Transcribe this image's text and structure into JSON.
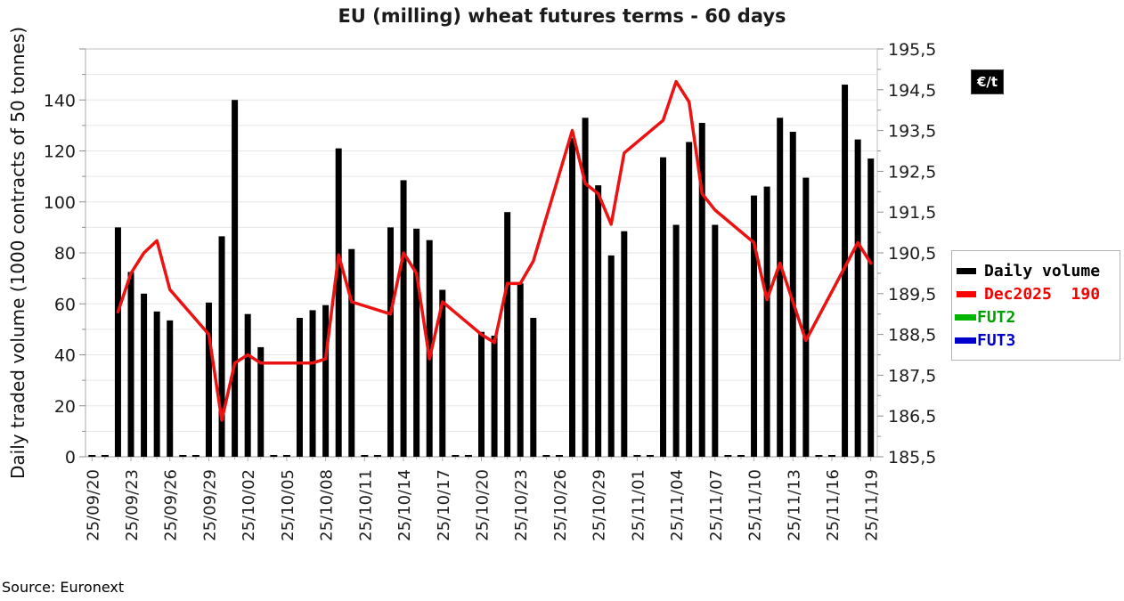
{
  "title": "EU (milling) wheat futures terms - 60 days",
  "source": "Source: Euronext",
  "unit_badge": "€/t",
  "y_axis_label": "Daily traded volume (1000 contracts of 50 tonnes)",
  "legend": {
    "items": [
      {
        "label": "Daily volume",
        "color": "#000000",
        "text_color": "#000000"
      },
      {
        "label": "Dec2025  190",
        "color": "#ff0000",
        "text_color": "#f50000"
      },
      {
        "label": "FUT2",
        "color": "#00b400",
        "text_color": "#00a000"
      },
      {
        "label": "FUT3",
        "color": "#0000cc",
        "text_color": "#0000cc"
      }
    ]
  },
  "chart_data": {
    "type": "bar+line",
    "title": "EU (milling) wheat futures terms - 60 days",
    "xlabel": "",
    "ylabel_left": "Daily traded volume (1000 contracts of 50 tonnes)",
    "ylabel_right": "€/t",
    "grid": true,
    "tick_label_every": 3,
    "dates": [
      "25/09/20",
      "25/09/21",
      "25/09/22",
      "25/09/23",
      "25/09/24",
      "25/09/25",
      "25/09/26",
      "25/09/27",
      "25/09/28",
      "25/09/29",
      "25/09/30",
      "25/10/01",
      "25/10/02",
      "25/10/03",
      "25/10/04",
      "25/10/05",
      "25/10/06",
      "25/10/07",
      "25/10/08",
      "25/10/09",
      "25/10/10",
      "25/10/11",
      "25/10/12",
      "25/10/13",
      "25/10/14",
      "25/10/15",
      "25/10/16",
      "25/10/17",
      "25/10/18",
      "25/10/19",
      "25/10/20",
      "25/10/21",
      "25/10/22",
      "25/10/23",
      "25/10/24",
      "25/10/25",
      "25/10/26",
      "25/10/27",
      "25/10/28",
      "25/10/29",
      "25/10/30",
      "25/10/31",
      "25/11/01",
      "25/11/02",
      "25/11/03",
      "25/11/04",
      "25/11/05",
      "25/11/06",
      "25/11/07",
      "25/11/08",
      "25/11/09",
      "25/11/10",
      "25/11/11",
      "25/11/12",
      "25/11/13",
      "25/11/14",
      "25/11/15",
      "25/11/16",
      "25/11/17",
      "25/11/18",
      "25/11/19"
    ],
    "left_axis": {
      "min": 0,
      "max": 160,
      "grid_step": 10,
      "minor_tick_step": 10,
      "tick_labels": [
        0,
        20,
        40,
        60,
        80,
        100,
        120,
        140
      ]
    },
    "right_axis": {
      "min": 185.5,
      "max": 195.5,
      "minor_tick_step": 0.5,
      "tick_labels": [
        "185,5",
        "186,5",
        "187,5",
        "188,5",
        "189,5",
        "190,5",
        "191,5",
        "192,5",
        "193,5",
        "194,5",
        "195,5"
      ]
    },
    "series": [
      {
        "name": "Daily volume",
        "type": "bar",
        "axis": "left",
        "color": "#000000",
        "values": [
          0,
          0,
          90,
          72.5,
          64,
          57,
          53.5,
          0,
          0,
          60.5,
          86.5,
          140,
          56,
          43,
          0,
          0,
          54.5,
          57.5,
          59.5,
          121,
          81.5,
          0,
          0,
          90,
          108.5,
          89.5,
          85,
          65.5,
          0,
          0,
          49,
          47.5,
          96,
          68,
          54.5,
          0,
          0,
          125,
          133,
          106.5,
          79,
          88.5,
          0,
          0,
          117.5,
          91,
          123.5,
          131,
          91,
          0,
          0,
          102.5,
          106,
          133,
          127.5,
          109.5,
          0,
          0,
          146,
          124.5,
          117
        ]
      },
      {
        "name": "Dec2025",
        "type": "line",
        "axis": "right",
        "color": "#ec1212",
        "last_price_label": "190",
        "values": [
          null,
          null,
          189.05,
          190.0,
          190.5,
          190.8,
          189.6,
          null,
          null,
          188.5,
          186.4,
          187.8,
          188.0,
          187.8,
          null,
          null,
          187.8,
          187.8,
          187.9,
          190.45,
          189.3,
          null,
          null,
          189.0,
          190.5,
          190.0,
          187.9,
          189.3,
          null,
          null,
          188.5,
          188.3,
          189.75,
          189.75,
          190.3,
          null,
          null,
          193.5,
          192.2,
          191.95,
          191.2,
          192.95,
          null,
          null,
          193.75,
          194.7,
          194.2,
          191.95,
          191.55,
          null,
          null,
          190.75,
          189.35,
          190.25,
          189.3,
          188.35,
          null,
          null,
          190.15,
          190.75,
          190.25
        ]
      },
      {
        "name": "FUT2",
        "type": "line",
        "axis": "right",
        "color": "#00b400",
        "values": []
      },
      {
        "name": "FUT3",
        "type": "line",
        "axis": "right",
        "color": "#0000cc",
        "values": []
      }
    ]
  }
}
